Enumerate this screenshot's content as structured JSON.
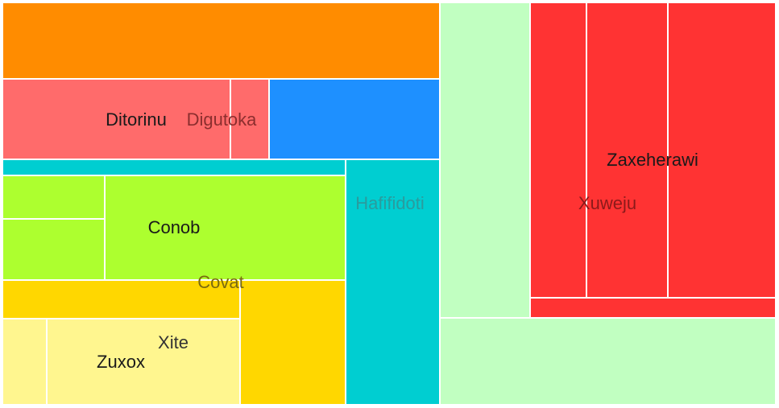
{
  "chart_data": {
    "type": "treemap",
    "title": "",
    "groups": [
      {
        "name": "",
        "color": "#FF8C00",
        "leaves": [
          {
            "name": "",
            "value": 20
          }
        ]
      },
      {
        "name": "Digutoka",
        "color": "#FF6B6B",
        "leaves": [
          {
            "name": "Ditorinu",
            "value": 12
          },
          {
            "name": "",
            "value": 2
          }
        ]
      },
      {
        "name": "",
        "color": "#1E90FF",
        "leaves": [
          {
            "name": "",
            "value": 8
          }
        ]
      },
      {
        "name": "Hafifidoti",
        "color": "#00CED1",
        "leaves": [
          {
            "name": "",
            "value": 3
          },
          {
            "name": "",
            "value": 15
          }
        ]
      },
      {
        "name": "Conob",
        "color": "#ADFF2F",
        "leaves": [
          {
            "name": "",
            "value": 3
          },
          {
            "name": "",
            "value": 4
          },
          {
            "name": "",
            "value": 18
          }
        ]
      },
      {
        "name": "Covat",
        "color": "#FFD700",
        "leaves": [
          {
            "name": "",
            "value": 6
          },
          {
            "name": "",
            "value": 8
          }
        ]
      },
      {
        "name": "Xite",
        "color": "#FFF68F",
        "leaves": [
          {
            "name": "",
            "value": 3
          },
          {
            "name": "Zuxox",
            "value": 12
          }
        ]
      },
      {
        "name": "",
        "color": "#C1FFC1",
        "leaves": [
          {
            "name": "",
            "value": 20
          },
          {
            "name": "",
            "value": 21
          }
        ]
      },
      {
        "name": "Xuweju",
        "color": "#FF3333",
        "leaves": [
          {
            "name": "",
            "value": 13
          },
          {
            "name": "",
            "value": 19
          },
          {
            "name": "Zaxeherawi",
            "value": 25
          },
          {
            "name": "",
            "value": 4
          }
        ]
      }
    ]
  }
}
